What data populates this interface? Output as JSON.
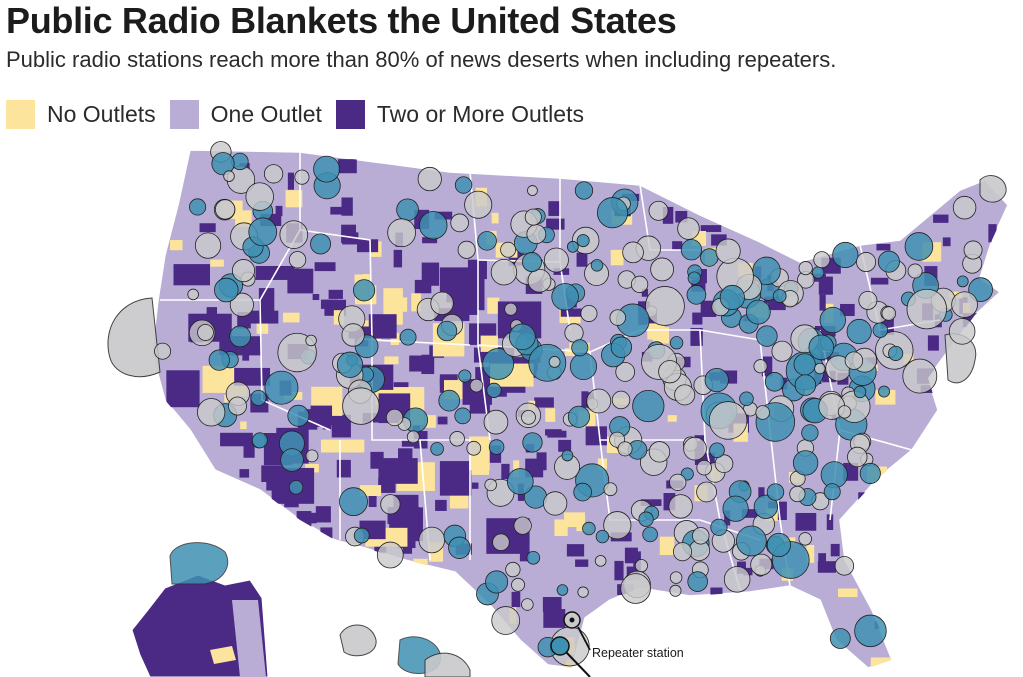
{
  "header": {
    "title": "Public Radio Blankets the United States",
    "subtitle": "Public radio stations reach more than 80% of news deserts when including repeaters."
  },
  "legend": {
    "items": [
      {
        "label": "No Outlets",
        "color": "#fde49c"
      },
      {
        "label": "One Outlet",
        "color": "#b9add6"
      },
      {
        "label": "Two or More Outlets",
        "color": "#4b2a86"
      }
    ]
  },
  "map": {
    "land_color": "#b9add6",
    "dark_color": "#4b2a86",
    "desert_color": "#fde49c",
    "station_color": "#3f91b3",
    "repeater_color": "#c9c9cb",
    "annotation": {
      "label": "Repeater station"
    }
  }
}
